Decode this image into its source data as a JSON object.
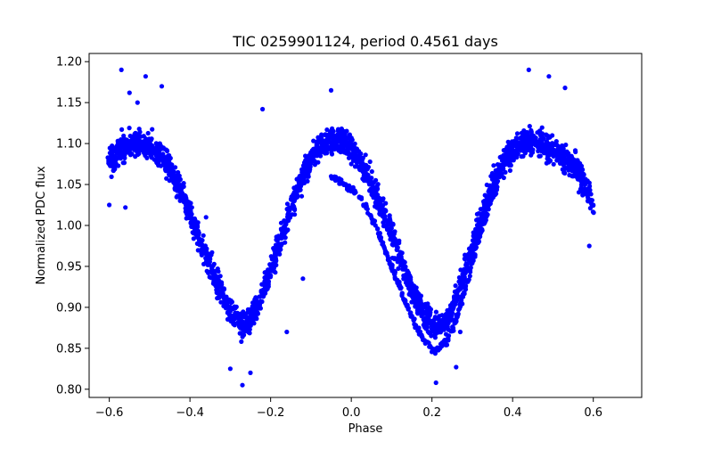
{
  "chart_data": {
    "type": "scatter",
    "title": "TIC 0259901124, period 0.4561 days",
    "xlabel": "Phase",
    "ylabel": "Normalized PDC flux",
    "xlim": [
      -0.65,
      0.72
    ],
    "ylim": [
      0.79,
      1.21
    ],
    "xticks": [
      -0.6,
      -0.4,
      -0.2,
      0.0,
      0.2,
      0.4,
      0.6
    ],
    "xtick_labels": [
      "−0.6",
      "−0.4",
      "−0.2",
      "0.0",
      "0.2",
      "0.4",
      "0.6"
    ],
    "yticks": [
      0.8,
      0.85,
      0.9,
      0.95,
      1.0,
      1.05,
      1.1,
      1.15,
      1.2
    ],
    "ytick_labels": [
      "0.80",
      "0.85",
      "0.90",
      "0.95",
      "1.00",
      "1.05",
      "1.10",
      "1.15",
      "1.20"
    ],
    "grid": false,
    "legend": "none",
    "marker_color": "#0000ff",
    "series": [
      {
        "description": "primary light curve track",
        "points": [
          [
            -0.6,
            1.075
          ],
          [
            -0.58,
            1.09
          ],
          [
            -0.56,
            1.098
          ],
          [
            -0.54,
            1.102
          ],
          [
            -0.52,
            1.1
          ],
          [
            -0.5,
            1.095
          ],
          [
            -0.48,
            1.09
          ],
          [
            -0.46,
            1.08
          ],
          [
            -0.44,
            1.06
          ],
          [
            -0.42,
            1.04
          ],
          [
            -0.4,
            1.015
          ],
          [
            -0.38,
            0.99
          ],
          [
            -0.36,
            0.965
          ],
          [
            -0.34,
            0.94
          ],
          [
            -0.32,
            0.915
          ],
          [
            -0.3,
            0.895
          ],
          [
            -0.28,
            0.882
          ],
          [
            -0.27,
            0.878
          ],
          [
            -0.26,
            0.88
          ],
          [
            -0.24,
            0.895
          ],
          [
            -0.22,
            0.918
          ],
          [
            -0.2,
            0.945
          ],
          [
            -0.18,
            0.975
          ],
          [
            -0.16,
            1.005
          ],
          [
            -0.14,
            1.035
          ],
          [
            -0.12,
            1.06
          ],
          [
            -0.1,
            1.08
          ],
          [
            -0.08,
            1.095
          ],
          [
            -0.06,
            1.102
          ],
          [
            -0.04,
            1.104
          ],
          [
            -0.02,
            1.102
          ],
          [
            0.0,
            1.094
          ],
          [
            0.02,
            1.08
          ],
          [
            0.04,
            1.062
          ],
          [
            0.06,
            1.04
          ],
          [
            0.08,
            1.015
          ],
          [
            0.1,
            0.99
          ],
          [
            0.12,
            0.962
          ],
          [
            0.14,
            0.935
          ],
          [
            0.16,
            0.91
          ],
          [
            0.18,
            0.892
          ],
          [
            0.2,
            0.88
          ],
          [
            0.21,
            0.876
          ],
          [
            0.22,
            0.878
          ],
          [
            0.24,
            0.89
          ],
          [
            0.26,
            0.912
          ],
          [
            0.28,
            0.94
          ],
          [
            0.3,
            0.972
          ],
          [
            0.32,
            1.005
          ],
          [
            0.34,
            1.035
          ],
          [
            0.36,
            1.06
          ],
          [
            0.38,
            1.078
          ],
          [
            0.4,
            1.092
          ],
          [
            0.42,
            1.1
          ],
          [
            0.44,
            1.103
          ],
          [
            0.46,
            1.102
          ],
          [
            0.48,
            1.098
          ],
          [
            0.5,
            1.092
          ],
          [
            0.52,
            1.085
          ],
          [
            0.54,
            1.078
          ],
          [
            0.56,
            1.068
          ],
          [
            0.58,
            1.05
          ],
          [
            0.6,
            1.025
          ]
        ]
      },
      {
        "description": "secondary lower track",
        "points": [
          [
            -0.05,
            1.06
          ],
          [
            0.0,
            1.045
          ],
          [
            0.02,
            1.035
          ],
          [
            0.04,
            1.02
          ],
          [
            0.06,
            1.0
          ],
          [
            0.08,
            0.975
          ],
          [
            0.1,
            0.95
          ],
          [
            0.12,
            0.925
          ],
          [
            0.14,
            0.9
          ],
          [
            0.16,
            0.878
          ],
          [
            0.18,
            0.86
          ],
          [
            0.2,
            0.85
          ],
          [
            0.21,
            0.848
          ],
          [
            0.22,
            0.85
          ],
          [
            0.24,
            0.862
          ],
          [
            0.26,
            0.885
          ],
          [
            0.28,
            0.918
          ],
          [
            0.3,
            0.955
          ],
          [
            0.32,
            0.99
          ],
          [
            0.34,
            1.02
          ],
          [
            0.36,
            1.045
          ]
        ]
      },
      {
        "description": "outlier points",
        "points": [
          [
            -0.57,
            1.19
          ],
          [
            -0.55,
            1.162
          ],
          [
            -0.53,
            1.15
          ],
          [
            -0.51,
            1.182
          ],
          [
            -0.47,
            1.17
          ],
          [
            -0.22,
            1.142
          ],
          [
            -0.05,
            1.165
          ],
          [
            0.44,
            1.19
          ],
          [
            0.49,
            1.182
          ],
          [
            0.53,
            1.168
          ],
          [
            -0.6,
            1.025
          ],
          [
            -0.56,
            1.022
          ],
          [
            -0.27,
            0.805
          ],
          [
            -0.25,
            0.82
          ],
          [
            -0.3,
            0.825
          ],
          [
            0.21,
            0.808
          ],
          [
            0.26,
            0.827
          ],
          [
            0.27,
            0.87
          ],
          [
            -0.16,
            0.87
          ],
          [
            -0.12,
            0.935
          ],
          [
            0.59,
            0.975
          ],
          [
            -0.36,
            1.01
          ]
        ]
      }
    ]
  }
}
